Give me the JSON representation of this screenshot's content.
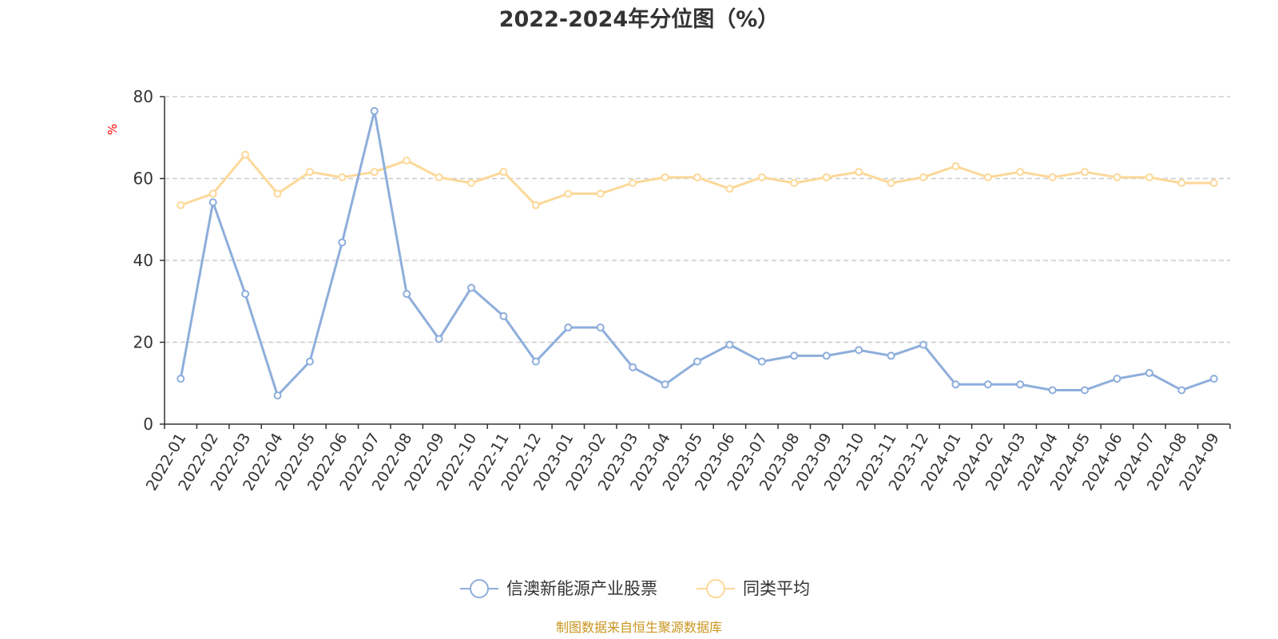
{
  "chart_data": {
    "type": "line",
    "title": "2022-2024年分位图（%）",
    "ylabel": "%",
    "xlabel": "",
    "ylim": [
      0,
      80
    ],
    "yticks": [
      0,
      20,
      40,
      60,
      80
    ],
    "grid": true,
    "legend_position": "bottom",
    "categories": [
      "2022-01",
      "2022-02",
      "2022-03",
      "2022-04",
      "2022-05",
      "2022-06",
      "2022-07",
      "2022-08",
      "2022-09",
      "2022-10",
      "2022-11",
      "2022-12",
      "2023-01",
      "2023-02",
      "2023-03",
      "2023-04",
      "2023-05",
      "2023-06",
      "2023-07",
      "2023-08",
      "2023-09",
      "2023-10",
      "2023-11",
      "2023-12",
      "2024-01",
      "2024-02",
      "2024-03",
      "2024-04",
      "2024-05",
      "2024-06",
      "2024-07",
      "2024-08",
      "2024-09"
    ],
    "series": [
      {
        "name": "信澳新能源产业股票",
        "color": "#8eaedb",
        "values": [
          11.1,
          54.2,
          31.8,
          7.0,
          15.3,
          44.4,
          76.5,
          31.8,
          20.8,
          33.3,
          26.4,
          15.3,
          23.6,
          23.6,
          13.9,
          9.7,
          15.3,
          19.4,
          15.3,
          16.7,
          16.7,
          18.1,
          16.7,
          19.4,
          9.7,
          9.7,
          9.7,
          8.3,
          8.3,
          11.1,
          12.5,
          8.3,
          11.1
        ]
      },
      {
        "name": "同类平均",
        "color": "#fcd899",
        "values": [
          53.5,
          56.3,
          65.8,
          56.3,
          61.6,
          60.3,
          61.6,
          64.4,
          60.3,
          58.9,
          61.6,
          53.5,
          56.3,
          56.3,
          58.9,
          60.3,
          60.3,
          57.5,
          60.3,
          58.9,
          60.3,
          61.6,
          58.9,
          60.3,
          63.0,
          60.3,
          61.6,
          60.3,
          61.6,
          60.3,
          60.3,
          58.9,
          58.9
        ]
      }
    ]
  },
  "footer": {
    "source": "制图数据来自恒生聚源数据库"
  }
}
